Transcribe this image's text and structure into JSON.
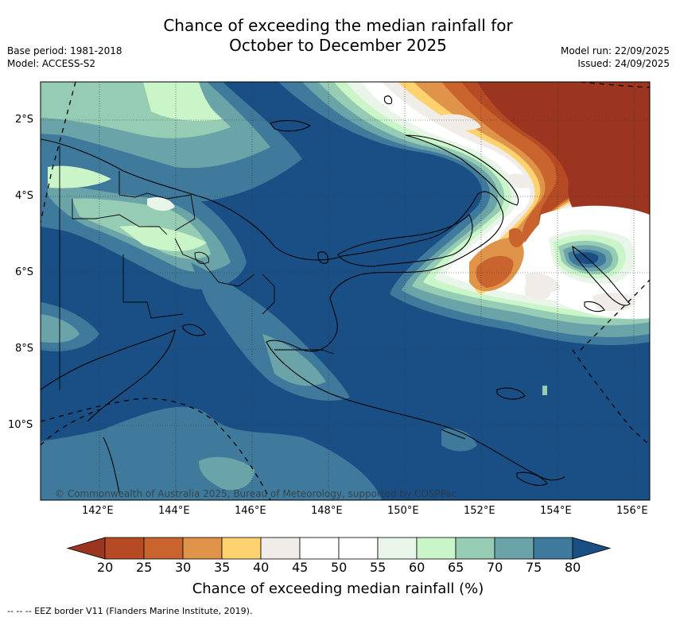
{
  "header": {
    "title_line1": "Chance of exceeding the median rainfall for",
    "title_line2": "October to December 2025",
    "base_period": "Base period: 1981-2018",
    "model": "Model: ACCESS-S2",
    "model_run": "Model run: 22/09/2025",
    "issued": "Issued: 24/09/2025"
  },
  "map": {
    "lon_ticks": [
      "142°E",
      "144°E",
      "146°E",
      "148°E",
      "150°E",
      "152°E",
      "154°E",
      "156°E"
    ],
    "lat_ticks": [
      "2°S",
      "4°S",
      "6°S",
      "8°S",
      "10°S"
    ],
    "copyright": "© Commonwealth of Australia 2025, Bureau of Meteorology, supported by COSPPac",
    "colors": {
      "ocean_deep": "#1a4f86",
      "c75": "#3f7a9c",
      "c70": "#6aa3a8",
      "c65": "#97ccb4",
      "c60": "#c9f5c9",
      "c55": "#e9f5e9",
      "c50": "#ffffff",
      "c45": "#f0ece8",
      "c40": "#ffd270",
      "c35": "#e0944a",
      "c30": "#c9642e",
      "c25": "#b54a25",
      "c20": "#9b3520"
    }
  },
  "colorbar": {
    "labels": [
      "20",
      "25",
      "30",
      "35",
      "40",
      "45",
      "50",
      "55",
      "60",
      "65",
      "70",
      "75",
      "80"
    ],
    "colors": [
      "#b54a25",
      "#c9642e",
      "#e0944a",
      "#ffd270",
      "#f0ece8",
      "#ffffff",
      "#ffffff",
      "#e9f5e9",
      "#c9f5c9",
      "#97ccb4",
      "#6aa3a8",
      "#3f7a9c"
    ],
    "low_color": "#9b3520",
    "high_color": "#1a4f86",
    "title": "Chance of exceeding median rainfall (%)"
  },
  "footer": {
    "eez_note": "--  --  -- EEZ border V11 (Flanders Marine Institute, 2019)."
  }
}
